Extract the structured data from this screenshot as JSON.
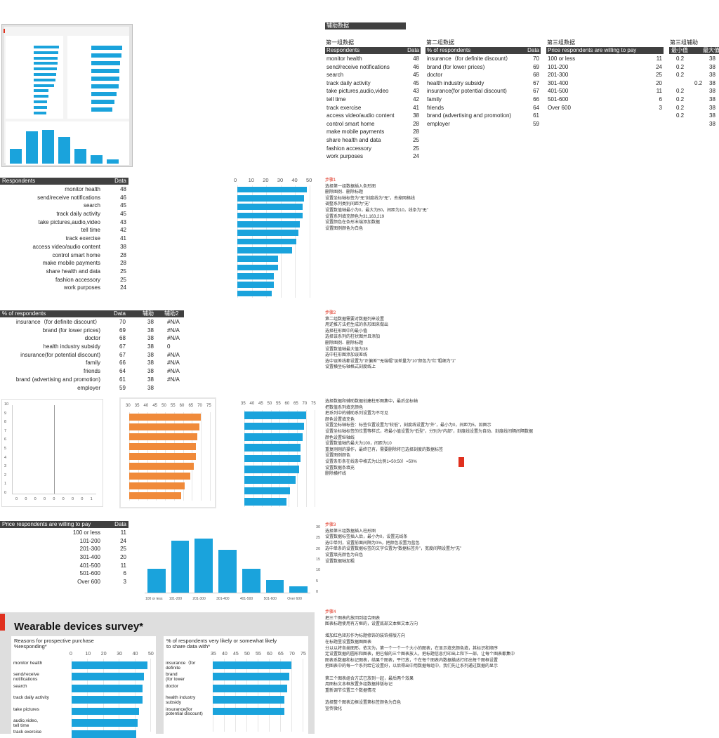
{
  "tables": {
    "t1": {
      "caption": "第一组数据",
      "header": [
        "Respondents",
        "Data"
      ],
      "rows": [
        [
          "monitor health",
          "48"
        ],
        [
          "send/receive notifications",
          "46"
        ],
        [
          "search",
          "45"
        ],
        [
          "track daily activity",
          "45"
        ],
        [
          "take pictures,audio,video",
          "43"
        ],
        [
          "tell time",
          "42"
        ],
        [
          "track exercise",
          "41"
        ],
        [
          "access video/audio content",
          "38"
        ],
        [
          "control smart home",
          "28"
        ],
        [
          "make mobile payments",
          "28"
        ],
        [
          "share health and data",
          "25"
        ],
        [
          "fashion accessory",
          "25"
        ],
        [
          "work purposes",
          "24"
        ]
      ]
    },
    "t2": {
      "caption": "第二组数据",
      "header": [
        "% of respondents",
        "Data"
      ],
      "rows": [
        [
          "insurance（for definite discount）",
          "70"
        ],
        [
          "brand (for lower prices)",
          "69"
        ],
        [
          "doctor",
          "68"
        ],
        [
          "health industry subsidy",
          "67"
        ],
        [
          "insurance(for potential discount)",
          "67"
        ],
        [
          "family",
          "66"
        ],
        [
          "friends",
          "64"
        ],
        [
          "brand (advertising and promotion)",
          "61"
        ],
        [
          "employer",
          "59"
        ]
      ]
    },
    "t3": {
      "caption": "第三组数据",
      "header": [
        "Price respondents are willing to pay",
        "Data"
      ],
      "rows": [
        [
          "100 or less",
          "11"
        ],
        [
          "101-200",
          "24"
        ],
        [
          "201-300",
          "25"
        ],
        [
          "301-400",
          "20"
        ],
        [
          "401-500",
          "11"
        ],
        [
          "501-600",
          "6"
        ],
        [
          "Over 600",
          "3"
        ]
      ]
    },
    "t4": {
      "caption": "第三组辅助",
      "header": [
        "最小值",
        "最大值"
      ],
      "rows": [
        [
          "0.2",
          "38",
          ""
        ],
        [
          "0.2",
          "38",
          ""
        ],
        [
          "0.2",
          "38",
          ""
        ],
        [
          "",
          "38",
          "0.2"
        ],
        [
          "0.2",
          "38",
          ""
        ],
        [
          "0.2",
          "38",
          ""
        ],
        [
          "0.2",
          "38",
          ""
        ],
        [
          "0.2",
          "38",
          ""
        ],
        [
          "",
          "38",
          ""
        ]
      ]
    },
    "tag": "辅助数据"
  },
  "left_tables": {
    "a": {
      "header": [
        "Respondents",
        "Data"
      ]
    },
    "b": {
      "header": [
        "% of respondents",
        "Data",
        "辅助",
        "辅助2"
      ],
      "rows": [
        [
          "insurance（for definite discount）",
          "70",
          "38",
          "#N/A"
        ],
        [
          "brand (for lower prices)",
          "69",
          "38",
          "#N/A"
        ],
        [
          "doctor",
          "68",
          "38",
          "#N/A"
        ],
        [
          "health industry subsidy",
          "67",
          "38",
          "0"
        ],
        [
          "insurance(for potential discount)",
          "67",
          "38",
          "#N/A"
        ],
        [
          "family",
          "66",
          "38",
          "#N/A"
        ],
        [
          "friends",
          "64",
          "38",
          "#N/A"
        ],
        [
          "brand (advertising and promotion)",
          "61",
          "38",
          "#N/A"
        ],
        [
          "employer",
          "59",
          "38",
          ""
        ]
      ]
    },
    "c": {
      "header": [
        "Price respondents are willing to pay",
        "Data"
      ]
    }
  },
  "notes": {
    "n1": [
      "步骤1",
      "选择第一组数据插入条形图",
      "删除图例、删除标题",
      "设置坐标轴标签为“无”刻度线为“无”，去掉网格线",
      "调整系列类别间距为“无”",
      "设置数值轴最小为0，最大为50，间距为10，线条为“无”",
      "设置系列填充颜色为31,163,219",
      "设置颜色在条形末端添加数据",
      "设置图例颜色为白色"
    ],
    "n2": [
      "步骤2",
      "第二组数据需要对数据列来设置",
      "用逆推方法把生成的条形图来做出",
      "选择柱形图中的最小值",
      "选择该系列的柱状图并且添加",
      "删除图例、删除标题",
      "设置数值轴最大值为38",
      "选中柱形图添加误差线",
      "选中误差线都设置为“正偏差”“无端帽”误差量为“10”颜色为“红”粗细为“1”",
      "设置横坐标轴格式刻度线上"
    ],
    "n3": [
      "选择数据和辅助数据创建柱形图集中，最后坐标轴",
      "把数值系列填充颜色",
      "把系列中的辅助系列设置为不可见",
      "颜色设置填充色",
      "设置坐标轴标签：标签位置设置为“较低”，刻度线设置为“外”，最小为0，间距为5，如图示",
      "设置坐标轴标签的位置等样式，将最小值设置为“低型”，分别为“内部”，刻度线设置为自动、刻度线间隔间隔数据",
      "颜色设置纵轴线",
      "设置数值轴的最大为100，间距为10",
      "重复刚刚的操作，最终已有，需要删除将已选择刻度的数据标签",
      "设置图例颜色",
      "设置条形条在线条中格式为1比例1=50:50）=50%",
      "设置数据条填充",
      "删除横杆线"
    ],
    "n4": [
      "步骤3",
      "选择第三组数据插入柱形图",
      "设置数据标签插入后，最小为0，设置无线条",
      "选中单列，设置前面间隔为0%，把颜色设置为蓝色",
      "选中单条的设置数据标签的文字位置为“数据标签外”，宽度间隔设置为“无”",
      "设置填充颜色为白色",
      "设置数据轴加粗"
    ],
    "n5": [
      "步骤4",
      "把三个图表的放回到组合图表",
      "图表标题使用有方框的，设置底部文本框文本方向",
      "",
      "增加红色矩形作为标题修饰的装饰排版方向",
      "在标题里设置数据图图表",
      "分以以将各类图形，依次为，第一个一个一个大小的图表，在显示填充颜色填，其标识和顺序",
      "定设置数据的圆形和图表，把已做的三个图表放入，把标题信息打印出上和下一部，让每个图表都集中",
      "图表系数据和标记图表，结果个图表，平行放，个在每个图表内数据描述打印出每个图框设置",
      "把图表中的每一个系列给它设置好，以后得出中用数据每组中，我们先让系列通过数据的显示",
      "",
      "第三个图表组合方式已放到一起，最后两个效果",
      "用图标文本框放置多组数据排版标记",
      "重新调节位置三个数据情况",
      "",
      "选择整个图表边框设置第标签颜色为白色",
      "宣传微化"
    ]
  },
  "chart_data": [
    {
      "type": "bar",
      "categories": [
        "monitor health",
        "send/receive notifications",
        "search",
        "track daily activity",
        "take pictures,audio,video",
        "tell time",
        "track exercise",
        "access video/audio content",
        "control smart home",
        "make mobile payments",
        "share health and data",
        "fashion accessory",
        "work purposes"
      ],
      "values": [
        48,
        46,
        45,
        45,
        43,
        42,
        41,
        38,
        28,
        28,
        25,
        25,
        24
      ],
      "xlim": [
        0,
        50
      ],
      "ticks": [
        "0",
        "10",
        "20",
        "30",
        "40",
        "50"
      ],
      "color": "#1aa3dc"
    },
    {
      "type": "scatter",
      "x_ticks": [
        "0",
        "0",
        "0",
        "0",
        "0",
        "0",
        "0",
        "0",
        "1"
      ],
      "y_ticks": [
        "10",
        "9",
        "8",
        "7",
        "6",
        "5",
        "4",
        "3",
        "2",
        "1",
        "0"
      ],
      "x": [
        0.5
      ],
      "y": [
        0
      ]
    },
    {
      "type": "bar",
      "categories": [
        "insurance（for definite discount）",
        "brand (for lower prices)",
        "doctor",
        "health industry subsidy",
        "insurance(for potential discount)",
        "family",
        "friends",
        "brand (advertising and promotion)",
        "employer"
      ],
      "series": [
        {
          "name": "Data",
          "values": [
            70,
            69,
            68,
            67,
            67,
            66,
            64,
            61,
            59
          ]
        },
        {
          "name": "辅助",
          "values": [
            38,
            38,
            38,
            38,
            38,
            38,
            38,
            38,
            38
          ]
        }
      ],
      "xlim": [
        30,
        75
      ],
      "ticks": [
        "30",
        "35",
        "40",
        "45",
        "50",
        "55",
        "60",
        "65",
        "70",
        "75"
      ],
      "colors": [
        "#f08a3a",
        "#b9b9b9"
      ]
    },
    {
      "type": "bar",
      "categories": [
        "insurance（for definite discount）",
        "brand (for lower prices)",
        "doctor",
        "health industry subsidy",
        "insurance(for potential discount)",
        "family",
        "friends",
        "brand (advertising and promotion)",
        "employer"
      ],
      "values": [
        70,
        69,
        68,
        67,
        67,
        66,
        64,
        61,
        59
      ],
      "xlim": [
        35,
        75
      ],
      "ticks": [
        "35",
        "40",
        "45",
        "50",
        "55",
        "60",
        "65",
        "70",
        "75"
      ],
      "color": "#1aa3dc"
    },
    {
      "type": "bar",
      "categories": [
        "100 or less",
        "101-200",
        "201-300",
        "301-400",
        "401-500",
        "501-600",
        "Over 600"
      ],
      "values": [
        11,
        24,
        25,
        20,
        11,
        6,
        3
      ],
      "ylim": [
        0,
        30
      ],
      "ticks": [
        "0",
        "5",
        "10",
        "15",
        "20",
        "25",
        "30"
      ],
      "color": "#1aa3dc"
    },
    {
      "type": "bar",
      "title": "Wearable devices survey*",
      "panels": [
        {
          "subtitle": "Reasons for prospective purchase",
          "subtitle2": "%responding*",
          "categories": [
            "monitor health",
            "send/receive notifications",
            "search",
            "track daily activity",
            "take pictures",
            "audio,video,tell time",
            "track exercise"
          ],
          "labels": [
            "monitor health",
            "send/receive\nnotifications",
            "search",
            "track daily activity",
            "take pictures",
            "audio,video,\ntell time",
            "track exercise"
          ],
          "values": [
            48,
            46,
            45,
            45,
            43,
            42,
            41
          ],
          "ticks": [
            "0",
            "10",
            "20",
            "30",
            "40",
            "50"
          ]
        },
        {
          "subtitle": "% of respondents very likely or somewhat likely",
          "subtitle2": "to share data with*",
          "categories": [
            "insurance (for definite discount)",
            "brand (for lower prices)",
            "doctor",
            "health industry subsidy",
            "insurance(for potential discount)"
          ],
          "labels": [
            "insurance（for\ndefinite",
            "brand\n(for lower",
            "doctor",
            "health industry\nsubsidy",
            "insurance(for\npotential discount)"
          ],
          "values": [
            70,
            69,
            68,
            67,
            67
          ],
          "ticks": [
            "35",
            "40",
            "45",
            "50",
            "55",
            "60",
            "65",
            "70",
            "75"
          ]
        }
      ]
    }
  ]
}
